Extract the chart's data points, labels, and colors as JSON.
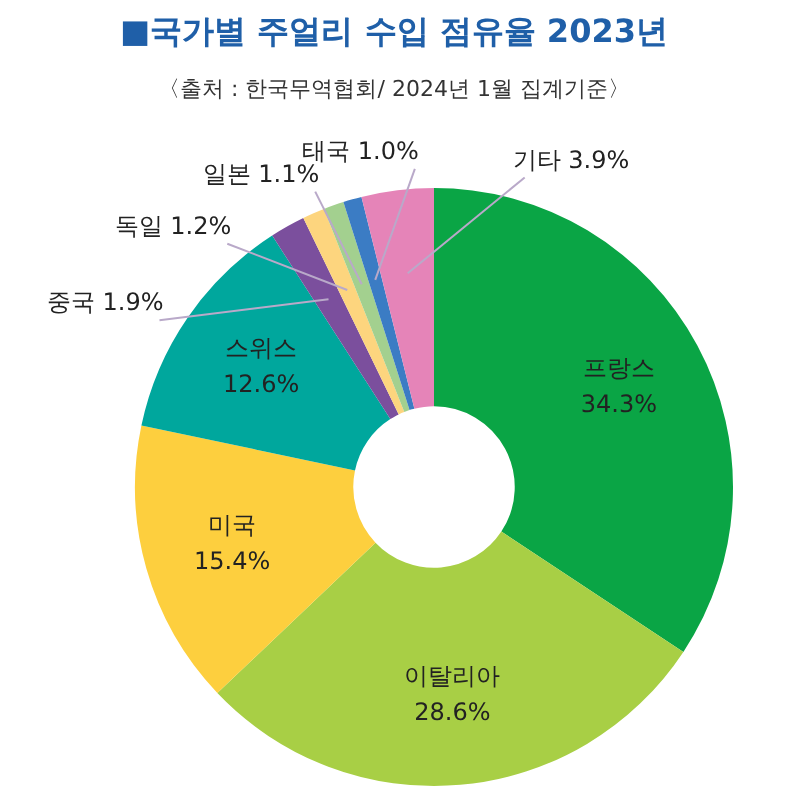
{
  "chart_data": {
    "type": "donut",
    "title": "■국가별 주얼리 수입 점유율 2023년",
    "subtitle": "〈출처 : 한국무역협회/ 2024년 1월 집계기준〉",
    "categories": [
      "프랑스",
      "이탈리아",
      "미국",
      "스위스",
      "중국",
      "독일",
      "일본",
      "태국",
      "기타"
    ],
    "values": [
      34.3,
      28.6,
      15.4,
      12.6,
      1.9,
      1.2,
      1.1,
      1.0,
      3.9
    ],
    "value_labels": [
      "34.3%",
      "28.6%",
      "15.4%",
      "12.6%",
      "1.9%",
      "1.2%",
      "1.1%",
      "1.0%",
      "3.9%"
    ],
    "colors": [
      "#0aa545",
      "#a8cf45",
      "#fdcf3e",
      "#00a79d",
      "#7b4f9d",
      "#fdd57e",
      "#a3d08f",
      "#3b7cc4",
      "#e584b8"
    ],
    "legend": false
  }
}
